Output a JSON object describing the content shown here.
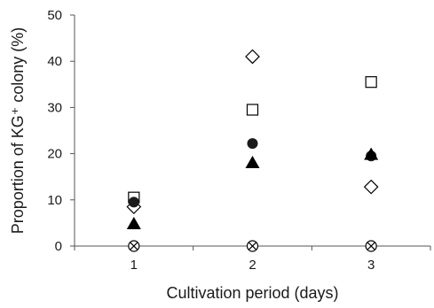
{
  "chart_data": {
    "type": "scatter",
    "title": "",
    "xlabel": "Cultivation period (days)",
    "ylabel": "Proportion of KG⁺ colony (%)",
    "x_categories": [
      "1",
      "2",
      "3"
    ],
    "xlim": [
      0.5,
      3.5
    ],
    "ylim": [
      0,
      50
    ],
    "yticks": [
      "0",
      "10",
      "20",
      "30",
      "40",
      "50"
    ],
    "grid": false,
    "legend": "none",
    "series": [
      {
        "marker": "open-square",
        "values": [
          10.5,
          29.5,
          35.5
        ]
      },
      {
        "marker": "open-diamond",
        "values": [
          8.5,
          41,
          12.8
        ]
      },
      {
        "marker": "filled-circle",
        "values": [
          9.5,
          22.2,
          19.5
        ]
      },
      {
        "marker": "filled-triangle",
        "values": [
          4.8,
          18,
          19.8
        ]
      },
      {
        "marker": "circle-x",
        "values": [
          0,
          0,
          0
        ]
      }
    ]
  }
}
